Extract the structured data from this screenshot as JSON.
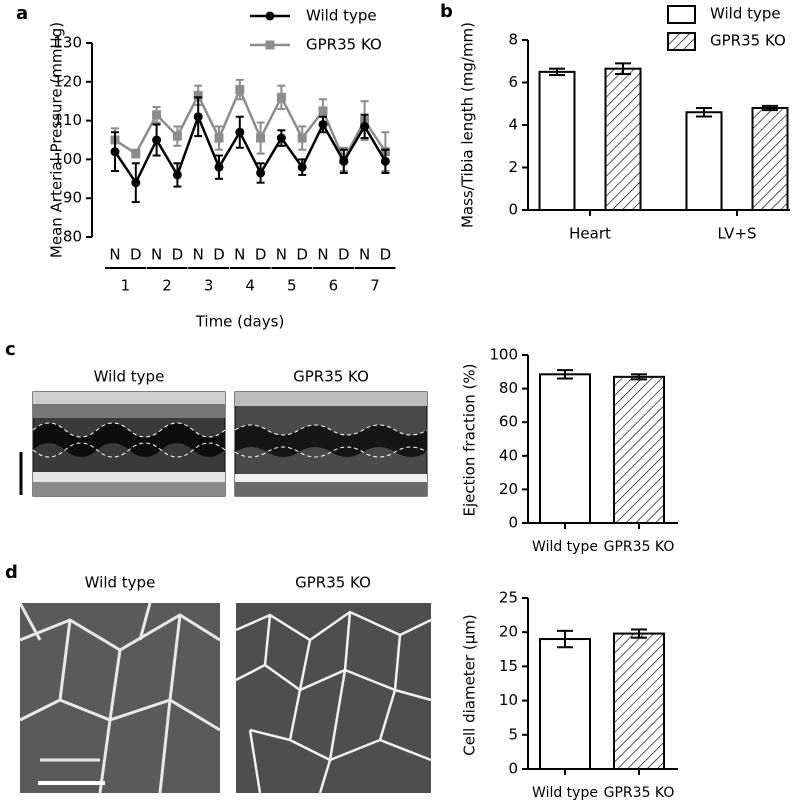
{
  "chart_data": [
    {
      "type": "line",
      "panel_label": "a",
      "y_label": "Mean Arterial Pressure (mmHg)",
      "x_label": "Time (days)",
      "categories": [
        "N",
        "D",
        "N",
        "D",
        "N",
        "D",
        "N",
        "D",
        "N",
        "D",
        "N",
        "D",
        "N",
        "D"
      ],
      "groups": [
        "1",
        "2",
        "3",
        "4",
        "5",
        "6",
        "7"
      ],
      "ylim": [
        80,
        130
      ],
      "yticks": [
        80,
        90,
        100,
        110,
        120,
        130
      ],
      "series": [
        {
          "name": "Wild type",
          "color": "#000000",
          "marker": "circle",
          "values": [
            102,
            94,
            105,
            96,
            111,
            98,
            107,
            96.5,
            105.5,
            98,
            109,
            99.5,
            108.5,
            99.5
          ],
          "errors": [
            5,
            5,
            4,
            3,
            5,
            3,
            4,
            2.5,
            2,
            2,
            2,
            3,
            3,
            3
          ]
        },
        {
          "name": "GPR35 KO",
          "color": "#8c8c8c",
          "marker": "square",
          "values": [
            105,
            101.5,
            111.5,
            106,
            116.5,
            105.5,
            118,
            105.5,
            116,
            105.5,
            112.5,
            100,
            110,
            102
          ],
          "errors": [
            3,
            1,
            2,
            2.5,
            2.5,
            3,
            2.5,
            4,
            3,
            3,
            3,
            3,
            5,
            5
          ]
        }
      ]
    },
    {
      "type": "bar",
      "panel_label": "b",
      "y_label": "Mass/Tibia length (mg/mm)",
      "categories": [
        "Heart",
        "LV+S"
      ],
      "ylim": [
        0,
        8
      ],
      "yticks": [
        0,
        2,
        4,
        6,
        8
      ],
      "series": [
        {
          "name": "Wild type",
          "fill": "white",
          "values": [
            6.5,
            4.6
          ],
          "errors": [
            0.15,
            0.2
          ]
        },
        {
          "name": "GPR35 KO",
          "fill": "hatch",
          "values": [
            6.65,
            4.8
          ],
          "errors": [
            0.25,
            0.1
          ]
        }
      ]
    },
    {
      "type": "bar",
      "panel_label": "c",
      "y_label": "Ejection fraction (%)",
      "image_labels": [
        "Wild type",
        "GPR35 KO"
      ],
      "categories": [
        "Wild type",
        "GPR35 KO"
      ],
      "ylim": [
        0,
        100
      ],
      "yticks": [
        0,
        20,
        40,
        60,
        80,
        100
      ],
      "fills": [
        "white",
        "hatch"
      ],
      "values": [
        88.5,
        87
      ],
      "errors": [
        2.5,
        1.5
      ]
    },
    {
      "type": "bar",
      "panel_label": "d",
      "y_label": "Cell diameter (μm)",
      "image_labels": [
        "Wild type",
        "GPR35 KO"
      ],
      "categories": [
        "Wild type",
        "GPR35 KO"
      ],
      "ylim": [
        0,
        25
      ],
      "yticks": [
        0,
        5,
        10,
        15,
        20,
        25
      ],
      "fills": [
        "white",
        "hatch"
      ],
      "values": [
        19,
        19.8
      ],
      "errors": [
        1.2,
        0.6
      ]
    }
  ]
}
